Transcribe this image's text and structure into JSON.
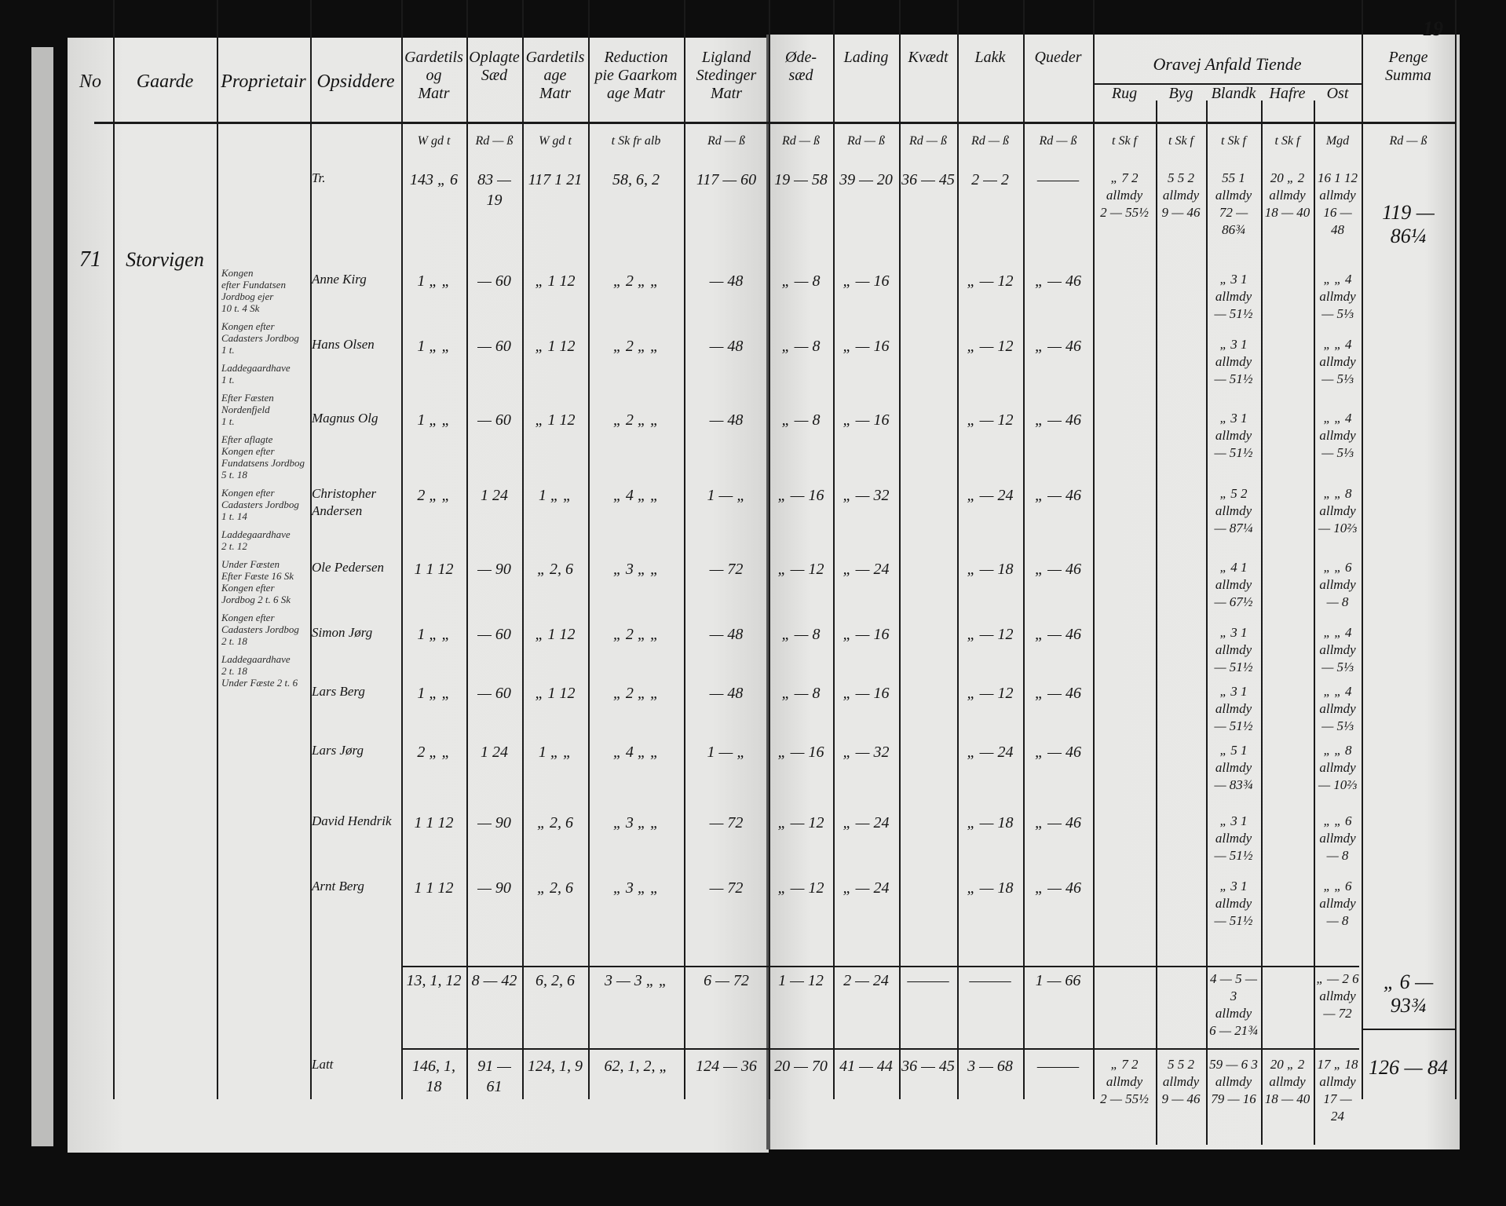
{
  "page_number": "19",
  "headers": {
    "no": "No",
    "gaard": "Gaarde",
    "prop": "Proprietair",
    "opsid": "Opsiddere",
    "a": "Gardetils\nog\nMatr",
    "b": "Oplagte\nSæd",
    "c": "Gardetils\nage\nMatr",
    "d": "Reduction\npie Gaarkom\nage Matr",
    "e": "Ligland\nStedinger\nMatr",
    "f": "Øde-\nsæd",
    "g": "Lading",
    "h": "Kvædt",
    "i": "Lakk",
    "j": "Queder",
    "grain_group": "Oravej Anfald Tiende",
    "rug": "Rug",
    "byg": "Byg",
    "bland": "Blandk",
    "havre": "Hafre",
    "ost": "Ost",
    "penge": "Penge\nSumma"
  },
  "units": {
    "a": "W gd t",
    "b": "Rd — ß",
    "c": "W gd t",
    "d": "t Sk fr alb",
    "e": "Rd — ß",
    "f": "Rd — ß",
    "g": "Rd — ß",
    "h": "Rd — ß",
    "i": "Rd — ß",
    "j": "Rd — ß",
    "rug": "t Sk f",
    "byg": "t Sk f",
    "bland": "t Sk f",
    "havre": "t Sk f",
    "ost": "Mgd",
    "penge": "Rd — ß"
  },
  "carry": {
    "opsid": "Tr.",
    "a": "143 „ 6",
    "b": "83 — 19",
    "c": "117 1 21",
    "d": "58, 6, 2",
    "e": "117 — 60",
    "f": "19 — 58",
    "g": "39 — 20",
    "h": "36 — 45",
    "i": "2 — 2",
    "j": "———",
    "rug": "„ 7 2\nallmdy\n2 — 55½",
    "byg": "5 5 2\nallmdy\n9 — 46",
    "bland": "55 1\nallmdy\n72 — 86¾",
    "havre": "20 „ 2\nallmdy\n18 — 40",
    "ost": "16 1 12\nallmdy\n16 — 48",
    "penge": "119 — 86¼"
  },
  "entry": {
    "no": "71",
    "gaard": "Storvigen"
  },
  "proprietor_notes": [
    "Kongen\nefter Fundatsen\nJordbog ejer\n10 t. 4 Sk",
    "Kongen efter\nCadasters Jordbog\n1 t.",
    "Laddegaardhave\n1 t.",
    "Efter Fæsten\nNordenfjeld\n1 t.",
    "Efter aflagte\nKongen efter\nFundatsens Jordbog\n5 t. 18",
    "Kongen efter\nCadasters Jordbog\n1 t. 14",
    "Laddegaardhave\n2 t. 12",
    "Under Fæsten\nEfter Fæste 16 Sk\nKongen efter\nJordbog 2 t. 6 Sk",
    "Kongen efter\nCadasters Jordbog\n2 t. 18",
    "Laddegaardhave\n2 t. 18\nUnder Fæste 2 t. 6"
  ],
  "rows": [
    {
      "opsid": "Anne Kirg",
      "a": "1 „ „",
      "b": "— 60",
      "c": "„ 1 12",
      "d": "„ 2 „ „",
      "e": "— 48",
      "f": "„ — 8",
      "g": "„ — 16",
      "i": "„ — 12",
      "j": "„ — 46",
      "bland": "„ 3 1\nallmdy\n— 51½",
      "ost": "„ „ 4\nallmdy\n— 5⅓"
    },
    {
      "opsid": "Hans Olsen",
      "a": "1 „ „",
      "b": "— 60",
      "c": "„ 1 12",
      "d": "„ 2 „ „",
      "e": "— 48",
      "f": "„ — 8",
      "g": "„ — 16",
      "i": "„ — 12",
      "j": "„ — 46",
      "bland": "„ 3 1\nallmdy\n— 51½",
      "ost": "„ „ 4\nallmdy\n— 5⅓"
    },
    {
      "opsid": "Magnus Olg",
      "a": "1 „ „",
      "b": "— 60",
      "c": "„ 1 12",
      "d": "„ 2 „ „",
      "e": "— 48",
      "f": "„ — 8",
      "g": "„ — 16",
      "i": "„ — 12",
      "j": "„ — 46",
      "bland": "„ 3 1\nallmdy\n— 51½",
      "ost": "„ „ 4\nallmdy\n— 5⅓"
    },
    {
      "opsid": "Christopher\nAndersen",
      "a": "2 „ „",
      "b": "1 24",
      "c": "1 „ „",
      "d": "„ 4 „ „",
      "e": "1 — „",
      "f": "„ — 16",
      "g": "„ — 32",
      "i": "„ — 24",
      "j": "„ — 46",
      "bland": "„ 5 2\nallmdy\n— 87¼",
      "ost": "„ „ 8\nallmdy\n— 10⅔"
    },
    {
      "opsid": "Ole Pedersen",
      "a": "1 1 12",
      "b": "— 90",
      "c": "„ 2, 6",
      "d": "„ 3 „ „",
      "e": "— 72",
      "f": "„ — 12",
      "g": "„ — 24",
      "i": "„ — 18",
      "j": "„ — 46",
      "bland": "„ 4 1\nallmdy\n— 67½",
      "ost": "„ „ 6\nallmdy\n— 8"
    },
    {
      "opsid": "Simon Jørg",
      "a": "1 „ „",
      "b": "— 60",
      "c": "„ 1 12",
      "d": "„ 2 „ „",
      "e": "— 48",
      "f": "„ — 8",
      "g": "„ — 16",
      "i": "„ — 12",
      "j": "„ — 46",
      "bland": "„ 3 1\nallmdy\n— 51½",
      "ost": "„ „ 4\nallmdy\n— 5⅓"
    },
    {
      "opsid": "Lars Berg",
      "a": "1 „ „",
      "b": "— 60",
      "c": "„ 1 12",
      "d": "„ 2 „ „",
      "e": "— 48",
      "f": "„ — 8",
      "g": "„ — 16",
      "i": "„ — 12",
      "j": "„ — 46",
      "bland": "„ 3 1\nallmdy\n— 51½",
      "ost": "„ „ 4\nallmdy\n— 5⅓"
    },
    {
      "opsid": "Lars Jørg",
      "a": "2 „ „",
      "b": "1 24",
      "c": "1 „ „",
      "d": "„ 4 „ „",
      "e": "1 — „",
      "f": "„ — 16",
      "g": "„ — 32",
      "i": "„ — 24",
      "j": "„ — 46",
      "bland": "„ 5 1\nallmdy\n— 83¾",
      "ost": "„ „ 8\nallmdy\n— 10⅔"
    },
    {
      "opsid": "David Hendrik",
      "a": "1 1 12",
      "b": "— 90",
      "c": "„ 2, 6",
      "d": "„ 3 „ „",
      "e": "— 72",
      "f": "„ — 12",
      "g": "„ — 24",
      "i": "„ — 18",
      "j": "„ — 46",
      "bland": "„ 3 1\nallmdy\n— 51½",
      "ost": "„ „ 6\nallmdy\n— 8"
    },
    {
      "opsid": "Arnt Berg",
      "a": "1 1 12",
      "b": "— 90",
      "c": "„ 2, 6",
      "d": "„ 3 „ „",
      "e": "— 72",
      "f": "„ — 12",
      "g": "„ — 24",
      "i": "„ — 18",
      "j": "„ — 46",
      "bland": "„ 3 1\nallmdy\n— 51½",
      "ost": "„ „ 6\nallmdy\n— 8"
    }
  ],
  "subtotal": {
    "a": "13, 1, 12",
    "b": "8 — 42",
    "c": "6, 2, 6",
    "d": "3 — 3 „ „",
    "e": "6 — 72",
    "f": "1 — 12",
    "g": "2 — 24",
    "h": "———",
    "i": "———",
    "j": "1 — 66",
    "bland": "4 — 5 — 3\nallmdy\n6 — 21¾",
    "ost": "„ — 2 6\nallmdy\n— 72",
    "penge": "„ 6 — 93¾"
  },
  "total": {
    "opsid": "Latt",
    "a": "146, 1, 18",
    "b": "91 — 61",
    "c": "124, 1, 9",
    "d": "62, 1, 2, „",
    "e": "124 — 36",
    "f": "20 — 70",
    "g": "41 — 44",
    "h": "36 — 45",
    "i": "3 — 68",
    "j": "———",
    "rug": "„ 7 2\nallmdy\n2 — 55½",
    "byg": "5 5 2\nallmdy\n9 — 46",
    "bland": "59 — 6 3\nallmdy\n79 — 16",
    "havre": "20 „ 2\nallmdy\n18 — 40",
    "ost": "17 „ 18\nallmdy\n17 — 24",
    "penge": "126 — 84"
  }
}
